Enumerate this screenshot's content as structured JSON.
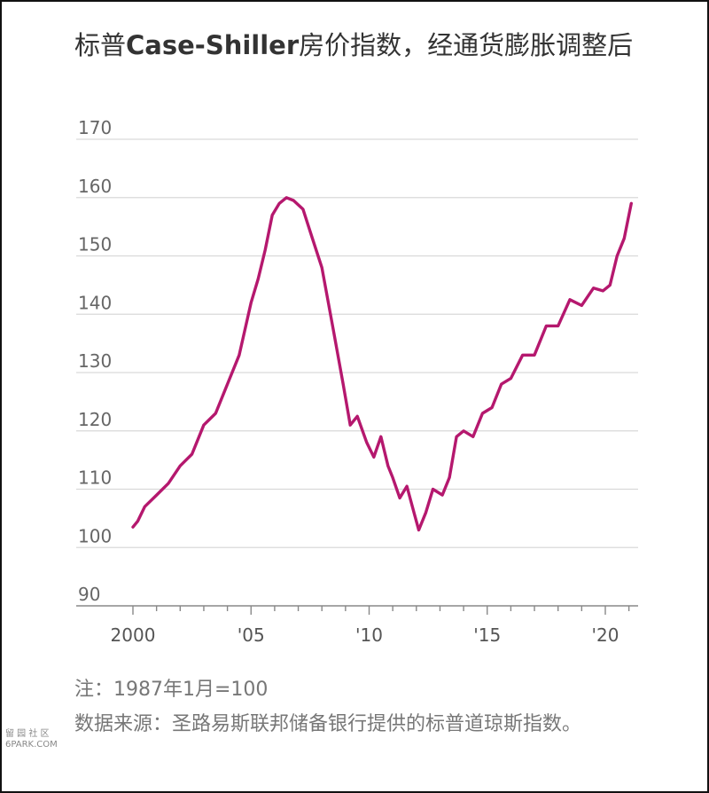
{
  "title": "标普Case-Shiller房价指数，经通货膨胀调整后",
  "note": "注：1987年1月=100",
  "source": "数据来源：圣路易斯联邦储备银行提供的标普道琼斯指数。",
  "watermark": [
    "留 园 社 区",
    "6PARK.COM"
  ],
  "chart_data": {
    "type": "line",
    "title": "标普Case-Shiller房价指数，经通货膨胀调整后",
    "xlabel": "",
    "ylabel": "",
    "ylim": [
      87,
      172
    ],
    "xlim": [
      2000,
      2021.3
    ],
    "yticks": [
      90,
      100,
      110,
      120,
      130,
      140,
      150,
      160,
      170
    ],
    "xticks": [
      {
        "value": 2000,
        "label": "2000"
      },
      {
        "value": 2005,
        "label": "'05"
      },
      {
        "value": 2010,
        "label": "'10"
      },
      {
        "value": 2015,
        "label": "'15"
      },
      {
        "value": 2020,
        "label": "'20"
      }
    ],
    "grid": true,
    "color": "#b5186e",
    "series": [
      {
        "x": [
          2000.0,
          2000.2,
          2000.5,
          2001.0,
          2001.5,
          2002.0,
          2002.5,
          2003.0,
          2003.5,
          2004.0,
          2004.5,
          2005.0,
          2005.3,
          2005.6,
          2005.9,
          2006.2,
          2006.5,
          2006.8,
          2007.2,
          2007.6,
          2008.0,
          2008.5,
          2008.9,
          2009.2,
          2009.5,
          2009.9,
          2010.2,
          2010.5,
          2010.8,
          2011.0,
          2011.3,
          2011.6,
          2011.9,
          2012.1,
          2012.4,
          2012.7,
          2013.1,
          2013.4,
          2013.7,
          2014.0,
          2014.4,
          2014.8,
          2015.2,
          2015.6,
          2016.0,
          2016.5,
          2017.0,
          2017.5,
          2018.0,
          2018.5,
          2019.0,
          2019.5,
          2019.9,
          2020.2,
          2020.5,
          2020.8,
          2021.1
        ],
        "y": [
          103.5,
          104.5,
          107,
          109,
          111,
          114,
          116,
          121,
          123,
          128,
          133,
          142,
          146,
          151,
          157,
          159,
          160,
          159.5,
          158,
          153,
          148,
          137,
          128,
          121,
          122.5,
          118,
          115.5,
          119,
          114,
          112,
          108.5,
          110.5,
          106,
          103,
          106,
          110,
          109,
          112,
          119,
          120,
          119,
          123,
          124,
          128,
          129,
          133,
          133,
          138,
          138,
          142.5,
          141.5,
          144.5,
          144,
          145,
          150,
          153,
          159
        ]
      }
    ]
  }
}
